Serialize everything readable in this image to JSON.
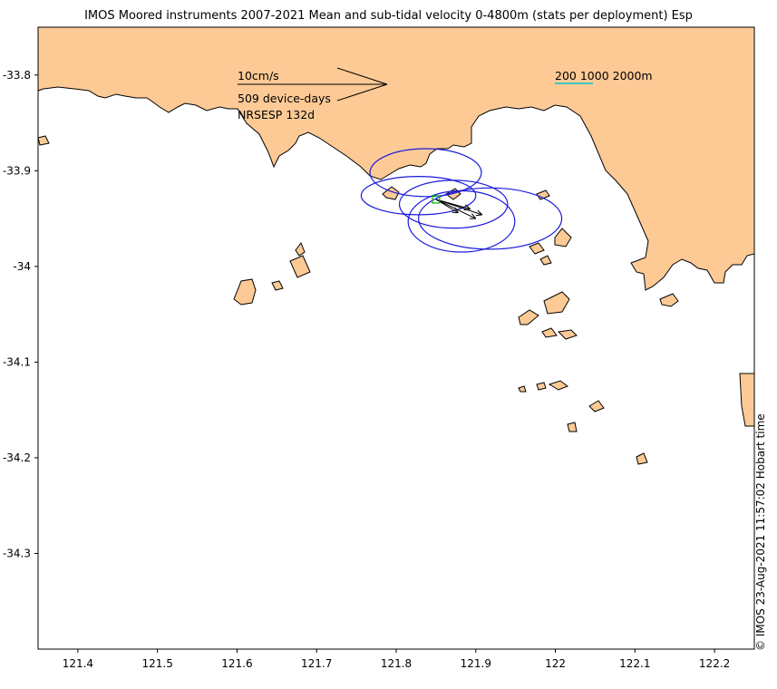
{
  "title": "IMOS Moored instruments 2007-2021 Mean and sub-tidal velocity 0-4800m (stats per deployment) Esp",
  "credit": "© IMOS 23-Aug-2021 11:57:02 Hobart time",
  "colors": {
    "land": "#fdca96",
    "coast": "#000000",
    "ellipse": "#1a1adc",
    "mooring": "#00b000",
    "isobath": "#00c8d2"
  },
  "axes": {
    "x_ticks": [
      "121.4",
      "121.5",
      "121.6",
      "121.7",
      "121.8",
      "121.9",
      "122",
      "122.1",
      "122.2"
    ],
    "y_ticks": [
      "-33.8",
      "-33.9",
      "-34",
      "-34.1",
      "-34.2",
      "-34.3"
    ],
    "x_range": [
      121.35,
      122.25
    ],
    "y_range": [
      -34.4,
      -33.75
    ]
  },
  "legend": {
    "scale_label": "10cm/s",
    "device_days": "509 device-days",
    "site_label": "NRSESP 132d",
    "isobaths_label": "200 1000 2000m"
  },
  "map_data": {
    "mooring": {
      "lon": 121.85,
      "lat": -33.93
    },
    "ellipses": [
      {
        "lon": 121.837,
        "lat": -33.902,
        "semi_major_lon": 0.07,
        "semi_minor_lat": 0.025,
        "tilt": 0
      },
      {
        "lon": 121.828,
        "lat": -33.926,
        "semi_major_lon": 0.072,
        "semi_minor_lat": 0.02,
        "tilt": 0
      },
      {
        "lon": 121.872,
        "lat": -33.935,
        "semi_major_lon": 0.068,
        "semi_minor_lat": 0.025,
        "tilt": 0
      },
      {
        "lon": 121.882,
        "lat": -33.953,
        "semi_major_lon": 0.067,
        "semi_minor_lat": 0.032,
        "tilt": 0
      },
      {
        "lon": 121.918,
        "lat": -33.95,
        "semi_major_lon": 0.09,
        "semi_minor_lat": 0.032,
        "tilt": 0
      }
    ],
    "vectors": [
      {
        "lon": 121.85,
        "lat": -33.93,
        "to_lon": 121.893,
        "to_lat": -33.94
      },
      {
        "lon": 121.85,
        "lat": -33.93,
        "to_lon": 121.908,
        "to_lat": -33.946
      },
      {
        "lon": 121.85,
        "lat": -33.93,
        "to_lon": 121.9,
        "to_lat": -33.95
      },
      {
        "lon": 121.85,
        "lat": -33.93,
        "to_lon": 121.878,
        "to_lat": -33.944
      }
    ]
  }
}
